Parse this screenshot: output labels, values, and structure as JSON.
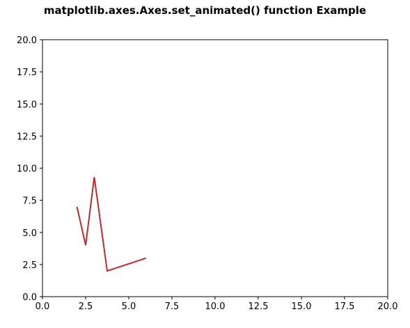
{
  "chart_data": {
    "type": "line",
    "title": "matplotlib.axes.Axes.set_animated() function Example",
    "xlabel": "",
    "ylabel": "",
    "xlim": [
      0,
      20
    ],
    "ylim": [
      0,
      20
    ],
    "xticks": [
      "0.0",
      "2.5",
      "5.0",
      "7.5",
      "10.0",
      "12.5",
      "15.0",
      "17.5",
      "20.0"
    ],
    "yticks": [
      "0.0",
      "2.5",
      "5.0",
      "7.5",
      "10.0",
      "12.5",
      "15.0",
      "17.5",
      "20.0"
    ],
    "grid": false,
    "series": [
      {
        "x": [
          2.0,
          2.5,
          3.0,
          3.75,
          6.0
        ],
        "y": [
          7.0,
          4.0,
          9.3,
          2.0,
          3.0
        ],
        "color": "#c0282d"
      }
    ]
  }
}
